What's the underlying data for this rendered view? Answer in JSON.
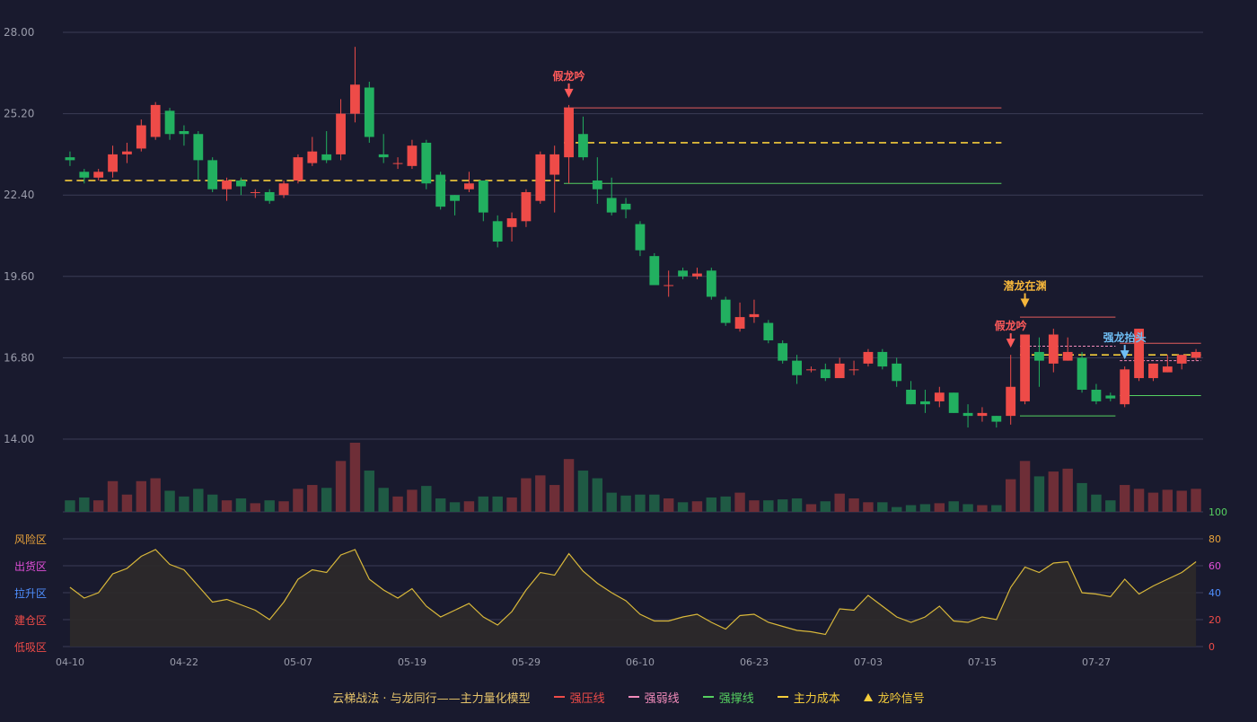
{
  "colors": {
    "background": "#191a2e",
    "grid": "#3a3c55",
    "axis_text": "#9a9cab",
    "up": "#ee4b48",
    "down": "#22b060",
    "up_vol": "#6e2e37",
    "down_vol": "#1f5a44",
    "strong_pressure": "#e25c5c",
    "weak": "#f28bbb",
    "support": "#55d060",
    "cost": "#f5cd3b",
    "osc_line": "#d9b83a",
    "osc_fill": "#2d2a2a",
    "signal_fake": "#ff5a5a",
    "signal_hidden": "#f5b63b",
    "signal_rise": "#6fbff5"
  },
  "chart_data": {
    "type": "candlestick",
    "price_axis": {
      "ticks": [
        "28.00",
        "25.20",
        "22.40",
        "19.60",
        "16.80",
        "14.00"
      ],
      "ylim": [
        14.0,
        28.0
      ]
    },
    "x_tick_labels": [
      "04-10",
      "04-22",
      "05-07",
      "05-19",
      "05-29",
      "06-10",
      "06-23",
      "07-03",
      "07-15",
      "07-27"
    ],
    "x_tick_index": [
      0,
      8,
      16,
      24,
      32,
      40,
      48,
      56,
      64,
      72
    ],
    "candles": [
      [
        23.7,
        23.6,
        23.9,
        23.4
      ],
      [
        23.2,
        23.0,
        23.3,
        22.8
      ],
      [
        23.0,
        23.2,
        23.3,
        22.9
      ],
      [
        23.2,
        23.8,
        24.1,
        23.0
      ],
      [
        23.8,
        23.9,
        24.2,
        23.5
      ],
      [
        24.0,
        24.8,
        25.0,
        23.9
      ],
      [
        24.4,
        25.5,
        25.6,
        24.3
      ],
      [
        25.3,
        24.5,
        25.4,
        24.3
      ],
      [
        24.6,
        24.5,
        24.8,
        24.1
      ],
      [
        24.5,
        23.6,
        24.6,
        22.9
      ],
      [
        23.6,
        22.6,
        23.7,
        22.5
      ],
      [
        22.6,
        22.9,
        23.0,
        22.2
      ],
      [
        22.9,
        22.7,
        23.0,
        22.4
      ],
      [
        22.5,
        22.5,
        22.6,
        22.3
      ],
      [
        22.5,
        22.2,
        22.6,
        22.1
      ],
      [
        22.4,
        22.8,
        22.9,
        22.3
      ],
      [
        22.9,
        23.7,
        23.8,
        22.8
      ],
      [
        23.5,
        23.9,
        24.4,
        23.4
      ],
      [
        23.8,
        23.6,
        24.6,
        23.5
      ],
      [
        23.8,
        25.2,
        25.7,
        23.6
      ],
      [
        25.2,
        26.2,
        27.5,
        24.9
      ],
      [
        26.1,
        24.4,
        26.3,
        24.2
      ],
      [
        23.8,
        23.7,
        24.5,
        23.5
      ],
      [
        23.5,
        23.5,
        23.7,
        23.3
      ],
      [
        23.4,
        24.1,
        24.3,
        23.3
      ],
      [
        24.2,
        22.8,
        24.3,
        22.6
      ],
      [
        23.1,
        22.0,
        23.2,
        21.9
      ],
      [
        22.4,
        22.2,
        22.4,
        21.7
      ],
      [
        22.6,
        22.8,
        23.2,
        22.5
      ],
      [
        22.9,
        21.8,
        22.9,
        21.5
      ],
      [
        21.5,
        20.8,
        21.7,
        20.6
      ],
      [
        21.3,
        21.6,
        21.8,
        20.8
      ],
      [
        21.5,
        22.5,
        22.6,
        21.3
      ],
      [
        22.2,
        23.8,
        23.9,
        22.1
      ],
      [
        23.1,
        23.8,
        24.1,
        21.8
      ],
      [
        23.7,
        25.4,
        25.5,
        22.8
      ],
      [
        24.5,
        23.7,
        25.1,
        23.6
      ],
      [
        22.9,
        22.6,
        23.7,
        22.1
      ],
      [
        22.3,
        21.8,
        23.0,
        21.7
      ],
      [
        22.1,
        21.9,
        22.3,
        21.6
      ],
      [
        21.4,
        20.5,
        21.5,
        20.3
      ],
      [
        20.3,
        19.3,
        20.4,
        19.3
      ],
      [
        19.3,
        19.3,
        19.8,
        18.9
      ],
      [
        19.8,
        19.6,
        19.9,
        19.5
      ],
      [
        19.6,
        19.7,
        19.9,
        19.5
      ],
      [
        19.8,
        18.9,
        19.9,
        18.8
      ],
      [
        18.8,
        18.0,
        18.9,
        17.9
      ],
      [
        17.8,
        18.2,
        18.7,
        17.7
      ],
      [
        18.2,
        18.3,
        18.8,
        18.0
      ],
      [
        18.0,
        17.4,
        18.1,
        17.3
      ],
      [
        17.3,
        16.7,
        17.4,
        16.6
      ],
      [
        16.7,
        16.2,
        16.9,
        15.9
      ],
      [
        16.4,
        16.4,
        16.5,
        16.3
      ],
      [
        16.4,
        16.1,
        16.6,
        16.0
      ],
      [
        16.1,
        16.6,
        16.8,
        16.1
      ],
      [
        16.4,
        16.4,
        16.7,
        16.2
      ],
      [
        16.6,
        17.0,
        17.1,
        16.5
      ],
      [
        17.0,
        16.5,
        17.1,
        16.4
      ],
      [
        16.6,
        16.0,
        16.8,
        15.8
      ],
      [
        15.7,
        15.2,
        16.0,
        15.2
      ],
      [
        15.3,
        15.2,
        15.7,
        14.9
      ],
      [
        15.3,
        15.6,
        15.8,
        15.1
      ],
      [
        15.6,
        14.9,
        15.6,
        14.9
      ],
      [
        14.9,
        14.8,
        15.2,
        14.4
      ],
      [
        14.8,
        14.9,
        15.1,
        14.6
      ],
      [
        14.8,
        14.6,
        14.8,
        14.4
      ],
      [
        14.8,
        15.8,
        16.9,
        14.5
      ],
      [
        15.3,
        17.6,
        17.6,
        15.2
      ],
      [
        17.0,
        16.7,
        17.5,
        15.8
      ],
      [
        16.6,
        17.6,
        17.8,
        16.3
      ],
      [
        16.7,
        17.0,
        17.5,
        16.7
      ],
      [
        16.8,
        15.7,
        17.0,
        15.6
      ],
      [
        15.7,
        15.3,
        15.9,
        15.2
      ],
      [
        15.5,
        15.4,
        15.6,
        15.3
      ],
      [
        15.2,
        16.4,
        16.5,
        15.1
      ],
      [
        16.1,
        17.8,
        17.8,
        16.0
      ],
      [
        16.1,
        16.6,
        16.6,
        16.0
      ],
      [
        16.3,
        16.5,
        16.9,
        16.3
      ],
      [
        16.6,
        16.9,
        16.9,
        16.4
      ],
      [
        16.8,
        17.0,
        17.1,
        16.7
      ]
    ],
    "volume_axis": {
      "ticks": [
        "100"
      ]
    },
    "volume": [
      12,
      15,
      12,
      32,
      18,
      32,
      35,
      22,
      16,
      24,
      18,
      12,
      14,
      9,
      12,
      11,
      24,
      28,
      25,
      53,
      72,
      43,
      25,
      16,
      23,
      27,
      14,
      10,
      11,
      16,
      16,
      15,
      35,
      38,
      28,
      55,
      43,
      35,
      20,
      17,
      18,
      18,
      14,
      10,
      11,
      15,
      16,
      20,
      12,
      12,
      13,
      14,
      8,
      11,
      19,
      14,
      10,
      10,
      5,
      7,
      8,
      9,
      11,
      8,
      7,
      7,
      34,
      53,
      37,
      42,
      45,
      30,
      18,
      12,
      28,
      24,
      20,
      23,
      22,
      24
    ],
    "osc_axis": {
      "ticks": [
        "80",
        "60",
        "40",
        "20",
        "0"
      ],
      "ylim": [
        0,
        100
      ],
      "zones": [
        "风险区",
        "出货区",
        "拉升区",
        "建仓区",
        "低吸区"
      ]
    },
    "oscillator": [
      44,
      36,
      40,
      54,
      58,
      67,
      72,
      61,
      57,
      45,
      33,
      35,
      31,
      27,
      20,
      33,
      50,
      57,
      55,
      68,
      72,
      50,
      42,
      36,
      43,
      30,
      22,
      27,
      32,
      22,
      16,
      26,
      42,
      55,
      53,
      69,
      56,
      47,
      40,
      34,
      24,
      19,
      19,
      22,
      24,
      18,
      13,
      23,
      24,
      18,
      15,
      12,
      11,
      9,
      28,
      27,
      38,
      30,
      22,
      18,
      22,
      30,
      19,
      18,
      22,
      20,
      44,
      59,
      55,
      62,
      63,
      40,
      39,
      37,
      50,
      39,
      45,
      50,
      55,
      63
    ],
    "lines": {
      "cost_line_1": {
        "value": 22.9,
        "from": 0,
        "to": 34
      },
      "pressure_1": {
        "value": 25.4,
        "from": 35,
        "to": 65
      },
      "cost_line_2": {
        "value": 24.2,
        "from": 35,
        "to": 65
      },
      "support_1": {
        "value": 22.8,
        "from": 35,
        "to": 65
      },
      "pressure_2": {
        "value": 18.2,
        "from": 67,
        "to": 73
      },
      "weak_2": {
        "value": 17.2,
        "from": 67,
        "to": 73
      },
      "cost_line_3": {
        "value": 16.9,
        "from": 67,
        "to": 79
      },
      "support_2": {
        "value": 14.8,
        "from": 67,
        "to": 73
      },
      "pressure_3": {
        "value": 17.3,
        "from": 74,
        "to": 79
      },
      "weak_3": {
        "value": 16.7,
        "from": 74,
        "to": 79
      },
      "support_3": {
        "value": 15.5,
        "from": 74,
        "to": 79
      }
    },
    "signals": [
      {
        "index": 35,
        "text": "假龙吟",
        "type": "fake"
      },
      {
        "index": 66,
        "text": "假龙吟",
        "type": "fake"
      },
      {
        "index": 67,
        "text": "潜龙在渊",
        "type": "hidden"
      },
      {
        "index": 74,
        "text": "强龙抬头",
        "type": "rise"
      }
    ]
  },
  "legend": {
    "title": "云梯战法 · 与龙同行——主力量化模型",
    "items": [
      {
        "label": "强压线",
        "style": "solid",
        "color_key": "strong_pressure"
      },
      {
        "label": "强弱线",
        "style": "dash",
        "color_key": "weak"
      },
      {
        "label": "强撑线",
        "style": "solid",
        "color_key": "support"
      },
      {
        "label": "主力成本",
        "style": "dash",
        "color_key": "cost"
      },
      {
        "label": "龙吟信号",
        "style": "triangle",
        "color_key": "cost"
      }
    ]
  }
}
